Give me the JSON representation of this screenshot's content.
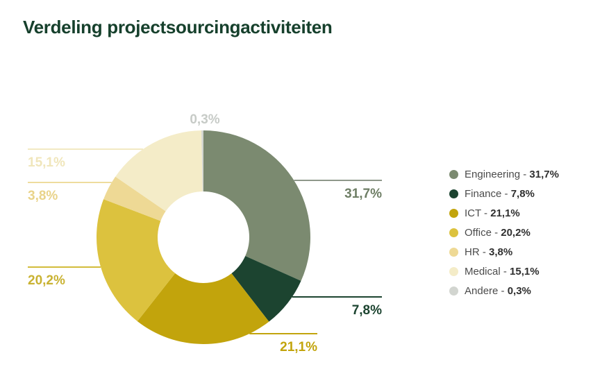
{
  "title": "Verdeling projectsourcingactiviteiten",
  "chart_data": {
    "type": "pie",
    "subtype": "donut",
    "start_angle_deg": 0,
    "direction": "clockwise",
    "unit": "%",
    "decimal_separator": ",",
    "legend_position": "right",
    "legend_separator": " - ",
    "series": [
      {
        "name": "Engineering",
        "value": 31.7,
        "label": "31,7%",
        "color": "#7b8a70",
        "label_color": "#6e7e65",
        "line_color": "#8e988a"
      },
      {
        "name": "Finance",
        "value": 7.8,
        "label": "7,8%",
        "color": "#1c4430",
        "label_color": "#1c4430",
        "line_color": "#1c4430"
      },
      {
        "name": "ICT",
        "value": 21.1,
        "label": "21,1%",
        "color": "#c2a40c",
        "label_color": "#c2a40c",
        "line_color": "#c2a40c"
      },
      {
        "name": "Office",
        "value": 20.2,
        "label": "20,2%",
        "color": "#dcc23e",
        "label_color": "#c9b232",
        "line_color": "#d2bc3a"
      },
      {
        "name": "HR",
        "value": 3.8,
        "label": "3,8%",
        "color": "#eed995",
        "label_color": "#e9d389",
        "line_color": "#eedc9d"
      },
      {
        "name": "Medical",
        "value": 15.1,
        "label": "15,1%",
        "color": "#f4ecc8",
        "label_color": "#f0e6bb",
        "line_color": "#f2e9c2"
      },
      {
        "name": "Andere",
        "value": 0.3,
        "label": "0,3%",
        "color": "#d2d5d0",
        "label_color": "#c7cbc7",
        "line_color": "#d2d5d0"
      }
    ]
  }
}
